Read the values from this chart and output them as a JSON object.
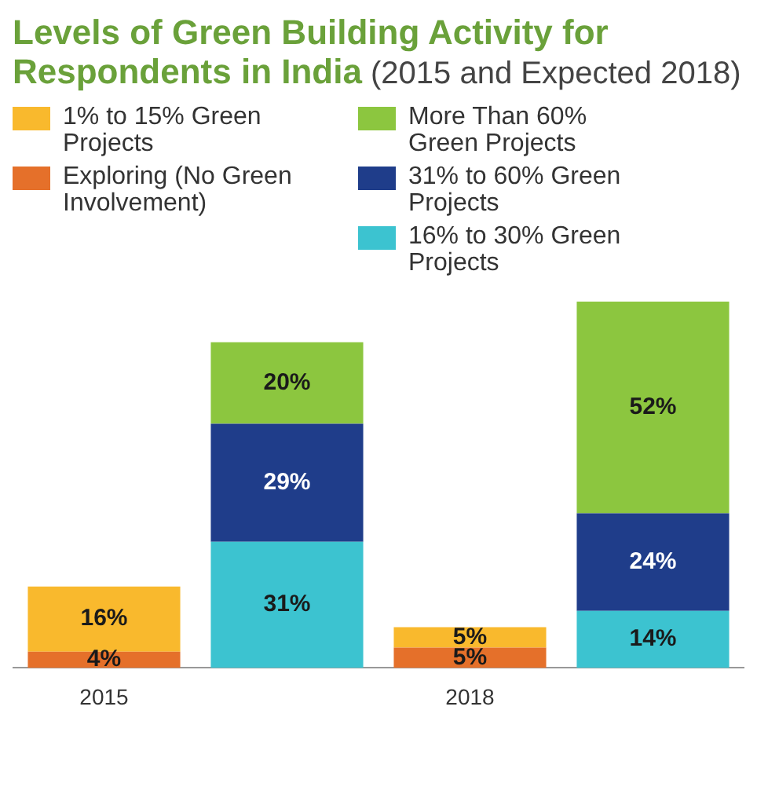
{
  "chart_data": {
    "type": "bar",
    "title": "Levels of Green Building Activity for Respondents in India",
    "subtitle": "(2015 and Expected 2018)",
    "categories": [
      "2015",
      null,
      "2018",
      null
    ],
    "stacked": true,
    "legend": "top",
    "grid": false,
    "tick_labels": "x",
    "series": [
      {
        "name": "Exploring (No Green Involvement)",
        "color": "#e5702a",
        "values": [
          4,
          null,
          5,
          null
        ],
        "value_labels": [
          "4%",
          null,
          "5%",
          null
        ]
      },
      {
        "name": "1% to 15% Green Projects",
        "color": "#f9b92d",
        "values": [
          16,
          null,
          5,
          null
        ],
        "value_labels": [
          "16%",
          null,
          "5%",
          null
        ]
      },
      {
        "name": "16% to 30% Green Projects",
        "color": "#3cc3d0",
        "values": [
          null,
          31,
          null,
          14
        ],
        "value_labels": [
          null,
          "31%",
          null,
          "14%"
        ]
      },
      {
        "name": "31% to 60% Green Projects",
        "color": "#1f3d8a",
        "values": [
          null,
          29,
          null,
          24
        ],
        "value_labels": [
          null,
          "29%",
          null,
          "24%"
        ]
      },
      {
        "name": "More Than 60% Green Projects",
        "color": "#8cc63f",
        "values": [
          null,
          20,
          null,
          52
        ],
        "value_labels": [
          null,
          "20%",
          null,
          "52%"
        ]
      }
    ]
  }
}
